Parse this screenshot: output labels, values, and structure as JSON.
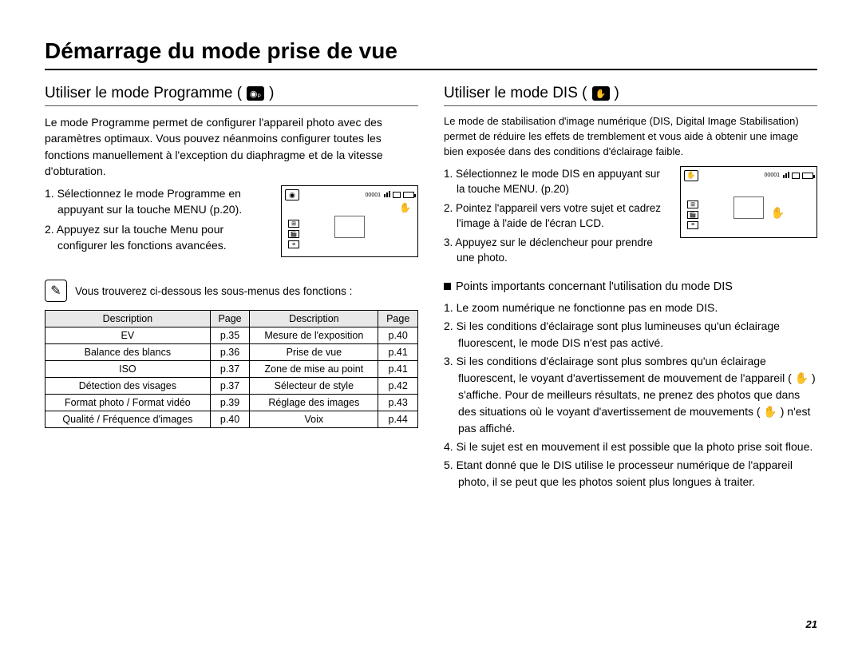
{
  "page_title": "Démarrage du mode prise de vue",
  "page_number": "21",
  "left": {
    "heading": "Utiliser le mode Programme (",
    "heading_close": ")",
    "mode_icon_label": "◉ₚ",
    "intro": "Le mode Programme permet de configurer l'appareil photo avec des paramètres optimaux. Vous pouvez néanmoins configurer toutes les fonctions manuellement à l'exception du diaphragme et de la vitesse d'obturation.",
    "steps": [
      "1. Sélectionnez le mode Programme en appuyant sur la touche MENU (p.20).",
      "2. Appuyez sur la touche Menu pour configurer les fonctions avancées."
    ],
    "note": "Vous trouverez ci-dessous les sous-menus des fonctions :",
    "table": {
      "headers": [
        "Description",
        "Page",
        "Description",
        "Page"
      ],
      "rows": [
        [
          "EV",
          "p.35",
          "Mesure de l'exposition",
          "p.40"
        ],
        [
          "Balance des blancs",
          "p.36",
          "Prise de vue",
          "p.41"
        ],
        [
          "ISO",
          "p.37",
          "Zone de mise au point",
          "p.41"
        ],
        [
          "Détection des visages",
          "p.37",
          "Sélecteur de style",
          "p.42"
        ],
        [
          "Format photo / Format vidéo",
          "p.39",
          "Réglage des images",
          "p.43"
        ],
        [
          "Qualité / Fréquence d'images",
          "p.40",
          "Voix",
          "p.44"
        ]
      ]
    }
  },
  "right": {
    "heading": "Utiliser le mode DIS (",
    "heading_close": ")",
    "mode_icon_label": "✋",
    "intro": "Le mode de stabilisation d'image numérique (DIS, Digital Image Stabilisation) permet de réduire les effets de tremblement et vous aide à obtenir une image bien exposée dans des conditions d'éclairage faible.",
    "steps": [
      "1. Sélectionnez le mode DIS en appuyant sur la touche MENU. (p.20)",
      "2. Pointez l'appareil vers votre sujet et cadrez l'image à l'aide de l'écran LCD.",
      "3. Appuyez sur le déclencheur pour prendre une photo."
    ],
    "important_head": "Points importants concernant l'utilisation du mode DIS",
    "notes": [
      "1. Le zoom numérique ne fonctionne pas en mode DIS.",
      "2. Si les conditions d'éclairage sont plus lumineuses qu'un éclairage fluorescent, le mode DIS n'est pas activé.",
      "3. Si les conditions d'éclairage sont plus sombres qu'un éclairage fluorescent, le voyant d'avertissement de mouvement de l'appareil ( ✋ ) s'affiche. Pour de meilleurs résultats, ne prenez des photos que dans des situations où le voyant d'avertissement de mouvements ( ✋ ) n'est pas affiché.",
      "4. Si le sujet est en mouvement il est possible que la photo prise soit floue.",
      "5. Etant donné que le DIS utilise le processeur numérique de l'appareil photo, il se peut que les photos soient plus longues à traiter."
    ]
  },
  "lcd": {
    "status_text": "00001",
    "side_icons": [
      "⊞",
      "🎬",
      "≡"
    ]
  }
}
